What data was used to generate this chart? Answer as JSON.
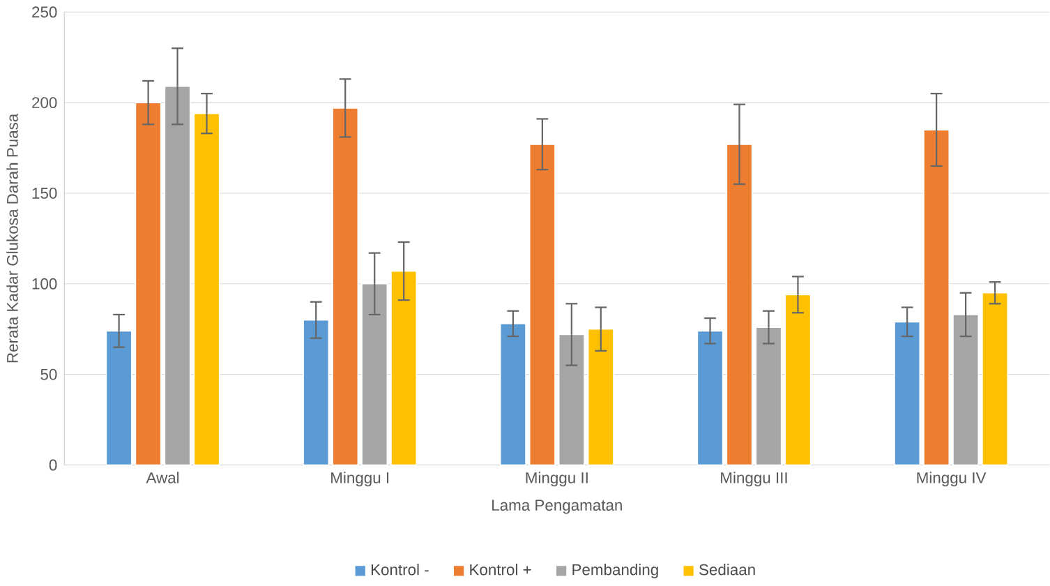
{
  "chart_data": {
    "type": "bar",
    "xlabel": "Lama Pengamatan",
    "ylabel": "Rerata Kadar Glukosa Darah Puasa",
    "categories": [
      "Awal",
      "Minggu I",
      "Minggu II",
      "Minggu III",
      "Minggu IV"
    ],
    "series": [
      {
        "name": "Kontrol -",
        "color": "#5b9bd5",
        "values": [
          74,
          80,
          78,
          74,
          79
        ],
        "errors": [
          9,
          10,
          7,
          7,
          8
        ]
      },
      {
        "name": "Kontrol +",
        "color": "#ed7d31",
        "values": [
          200,
          197,
          177,
          177,
          185
        ],
        "errors": [
          12,
          16,
          14,
          22,
          20
        ]
      },
      {
        "name": "Pembanding",
        "color": "#a5a5a5",
        "values": [
          209,
          100,
          72,
          76,
          83
        ],
        "errors": [
          21,
          17,
          17,
          9,
          12
        ]
      },
      {
        "name": "Sediaan",
        "color": "#ffc000",
        "values": [
          194,
          107,
          75,
          94,
          95
        ],
        "errors": [
          11,
          16,
          12,
          10,
          6
        ]
      }
    ],
    "ylim": [
      0,
      250
    ],
    "yticks": [
      0,
      50,
      100,
      150,
      200,
      250
    ],
    "grid": "y",
    "legend": "bottom"
  }
}
